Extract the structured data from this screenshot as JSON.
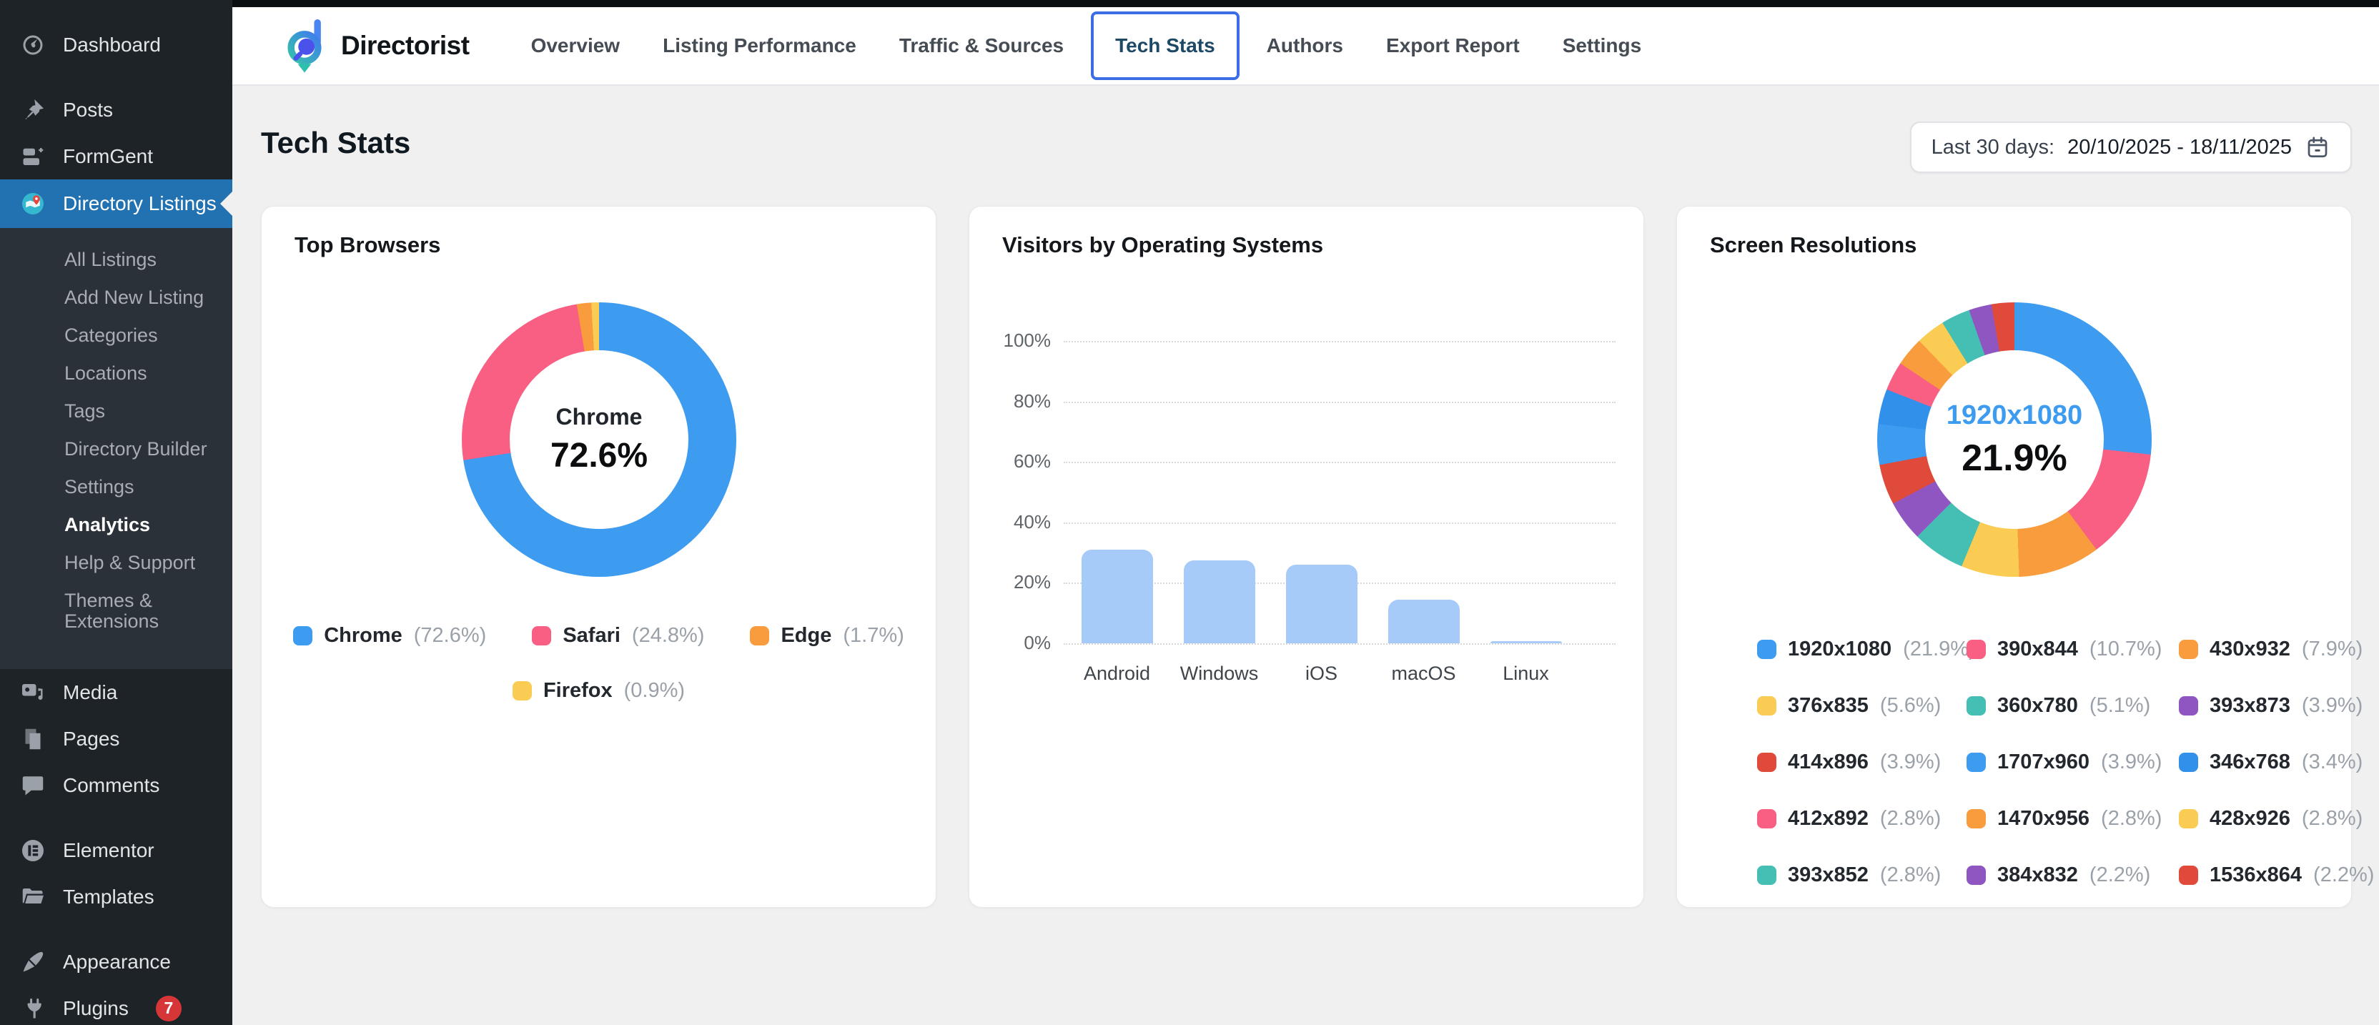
{
  "sidebar": {
    "items": [
      {
        "id": "dashboard",
        "label": "Dashboard",
        "icon": "dashboard-icon"
      },
      {
        "id": "posts",
        "label": "Posts",
        "icon": "pushpin-icon",
        "gap_before": true
      },
      {
        "id": "formgent",
        "label": "FormGent",
        "icon": "form-icon"
      },
      {
        "id": "directory-listings",
        "label": "Directory Listings",
        "icon": "map-pin-icon",
        "active": true,
        "submenu": [
          "All Listings",
          "Add New Listing",
          "Categories",
          "Locations",
          "Tags",
          "Directory Builder",
          "Settings",
          "Analytics",
          "Help & Support",
          "Themes & Extensions"
        ],
        "active_submenu": "Analytics"
      },
      {
        "id": "media",
        "label": "Media",
        "icon": "media-icon"
      },
      {
        "id": "pages",
        "label": "Pages",
        "icon": "pages-icon"
      },
      {
        "id": "comments",
        "label": "Comments",
        "icon": "comment-icon"
      },
      {
        "id": "elementor",
        "label": "Elementor",
        "icon": "elementor-icon",
        "gap_before": true
      },
      {
        "id": "templates",
        "label": "Templates",
        "icon": "folder-icon"
      },
      {
        "id": "appearance",
        "label": "Appearance",
        "icon": "paintbrush-icon",
        "gap_before": true
      },
      {
        "id": "plugins",
        "label": "Plugins",
        "icon": "plug-icon",
        "badge": "7"
      }
    ]
  },
  "topnav": {
    "brand": "Directorist",
    "tabs": [
      "Overview",
      "Listing Performance",
      "Traffic & Sources",
      "Tech Stats",
      "Authors",
      "Export Report",
      "Settings"
    ],
    "active_tab": "Tech Stats"
  },
  "page": {
    "title": "Tech Stats",
    "date_range_label": "Last 30 days:",
    "date_range_value": "20/10/2025 - 18/11/2025"
  },
  "colors": {
    "active_menu_blue": "#2271b1",
    "badge_red": "#d63638",
    "tab_border_blue": "#3D6DE4",
    "accent_blue": "#3D9BF0",
    "bar_blue": "#A7CBF8"
  },
  "chart_data": [
    {
      "type": "pie",
      "title": "Top Browsers",
      "center_label": "Chrome",
      "center_value": "72.6%",
      "center_label_color": "#20262c",
      "legend_position": "bottom-centered",
      "segments": [
        {
          "label": "Chrome",
          "pct": 72.6,
          "color": "#3D9BF0"
        },
        {
          "label": "Safari",
          "pct": 24.8,
          "color": "#F95F83"
        },
        {
          "label": "Edge",
          "pct": 1.7,
          "color": "#F99C3E"
        },
        {
          "label": "Firefox",
          "pct": 0.9,
          "color": "#FACC53"
        }
      ]
    },
    {
      "type": "bar",
      "title": "Visitors by Operating Systems",
      "categories": [
        "Android",
        "Windows",
        "iOS",
        "macOS",
        "Linux"
      ],
      "values": [
        31,
        27.5,
        26,
        14.5,
        0.4
      ],
      "unit": "%",
      "xlabel": "",
      "ylabel": "",
      "ylim": [
        0,
        100
      ],
      "yticks": [
        "0%",
        "20%",
        "40%",
        "60%",
        "80%",
        "100%"
      ],
      "grid": "dotted-horizontal",
      "legend_position": "none"
    },
    {
      "type": "pie",
      "title": "Screen Resolutions",
      "center_label": "1920x1080",
      "center_value": "21.9%",
      "center_label_color": "#3D9BF0",
      "legend_position": "bottom-grid-3col",
      "segments": [
        {
          "label": "1920x1080",
          "pct": 21.9,
          "color": "#3D9BF0"
        },
        {
          "label": "390x844",
          "pct": 10.7,
          "color": "#F95F83"
        },
        {
          "label": "430x932",
          "pct": 7.9,
          "color": "#F99C3E"
        },
        {
          "label": "376x835",
          "pct": 5.6,
          "color": "#FACC53"
        },
        {
          "label": "360x780",
          "pct": 5.1,
          "color": "#45BFB4"
        },
        {
          "label": "393x873",
          "pct": 3.9,
          "color": "#8F56C1"
        },
        {
          "label": "414x896",
          "pct": 3.9,
          "color": "#E04A3A"
        },
        {
          "label": "1707x960",
          "pct": 3.9,
          "color": "#3D9BF0"
        },
        {
          "label": "346x768",
          "pct": 3.4,
          "color": "#3190E9"
        },
        {
          "label": "412x892",
          "pct": 2.8,
          "color": "#F95F83"
        },
        {
          "label": "1470x956",
          "pct": 2.8,
          "color": "#F99C3E"
        },
        {
          "label": "428x926",
          "pct": 2.8,
          "color": "#FACC53"
        },
        {
          "label": "393x852",
          "pct": 2.8,
          "color": "#45BFB4"
        },
        {
          "label": "384x832",
          "pct": 2.2,
          "color": "#8F56C1"
        },
        {
          "label": "1536x864",
          "pct": 2.2,
          "color": "#E04A3A"
        }
      ]
    }
  ]
}
